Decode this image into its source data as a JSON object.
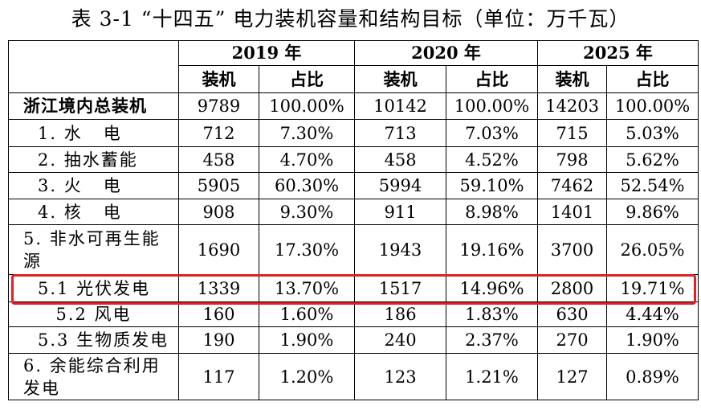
{
  "caption": "表 3-1 “十四五” 电力装机容量和结构目标（单位：万千瓦）",
  "header": {
    "years": [
      "2019 年",
      "2020 年",
      "2025 年"
    ],
    "sub": [
      "装机",
      "占比",
      "装机",
      "占比",
      "装机",
      "占比"
    ]
  },
  "rows": [
    {
      "label": "浙江境内总装机",
      "v": [
        "9789",
        "100.00%",
        "10142",
        "100.00%",
        "14203",
        "100.00%"
      ]
    },
    {
      "label": "1. 水   电",
      "v": [
        "712",
        "7.30%",
        "713",
        "7.03%",
        "715",
        "5.03%"
      ]
    },
    {
      "label": "2. 抽水蓄能",
      "v": [
        "458",
        "4.70%",
        "458",
        "4.52%",
        "798",
        "5.62%"
      ]
    },
    {
      "label": "3. 火   电",
      "v": [
        "5905",
        "60.30%",
        "5994",
        "59.10%",
        "7462",
        "52.54%"
      ]
    },
    {
      "label": "4. 核   电",
      "v": [
        "908",
        "9.30%",
        "911",
        "8.98%",
        "1401",
        "9.86%"
      ]
    },
    {
      "label": "5. 非水可再生能源",
      "v": [
        "1690",
        "17.30%",
        "1943",
        "19.16%",
        "3700",
        "26.05%"
      ]
    },
    {
      "label": "5.1 光伏发电",
      "v": [
        "1339",
        "13.70%",
        "1517",
        "14.96%",
        "2800",
        "19.71%"
      ]
    },
    {
      "label": "5.2 风电",
      "v": [
        "160",
        "1.60%",
        "186",
        "1.83%",
        "630",
        "4.44%"
      ]
    },
    {
      "label": "5.3 生物质发电",
      "v": [
        "190",
        "1.90%",
        "240",
        "2.37%",
        "270",
        "1.90%"
      ]
    },
    {
      "label": "6. 余能综合利用发电",
      "v": [
        "117",
        "1.20%",
        "123",
        "1.21%",
        "127",
        "0.89%"
      ]
    }
  ],
  "highlight_color": "#e21f26"
}
